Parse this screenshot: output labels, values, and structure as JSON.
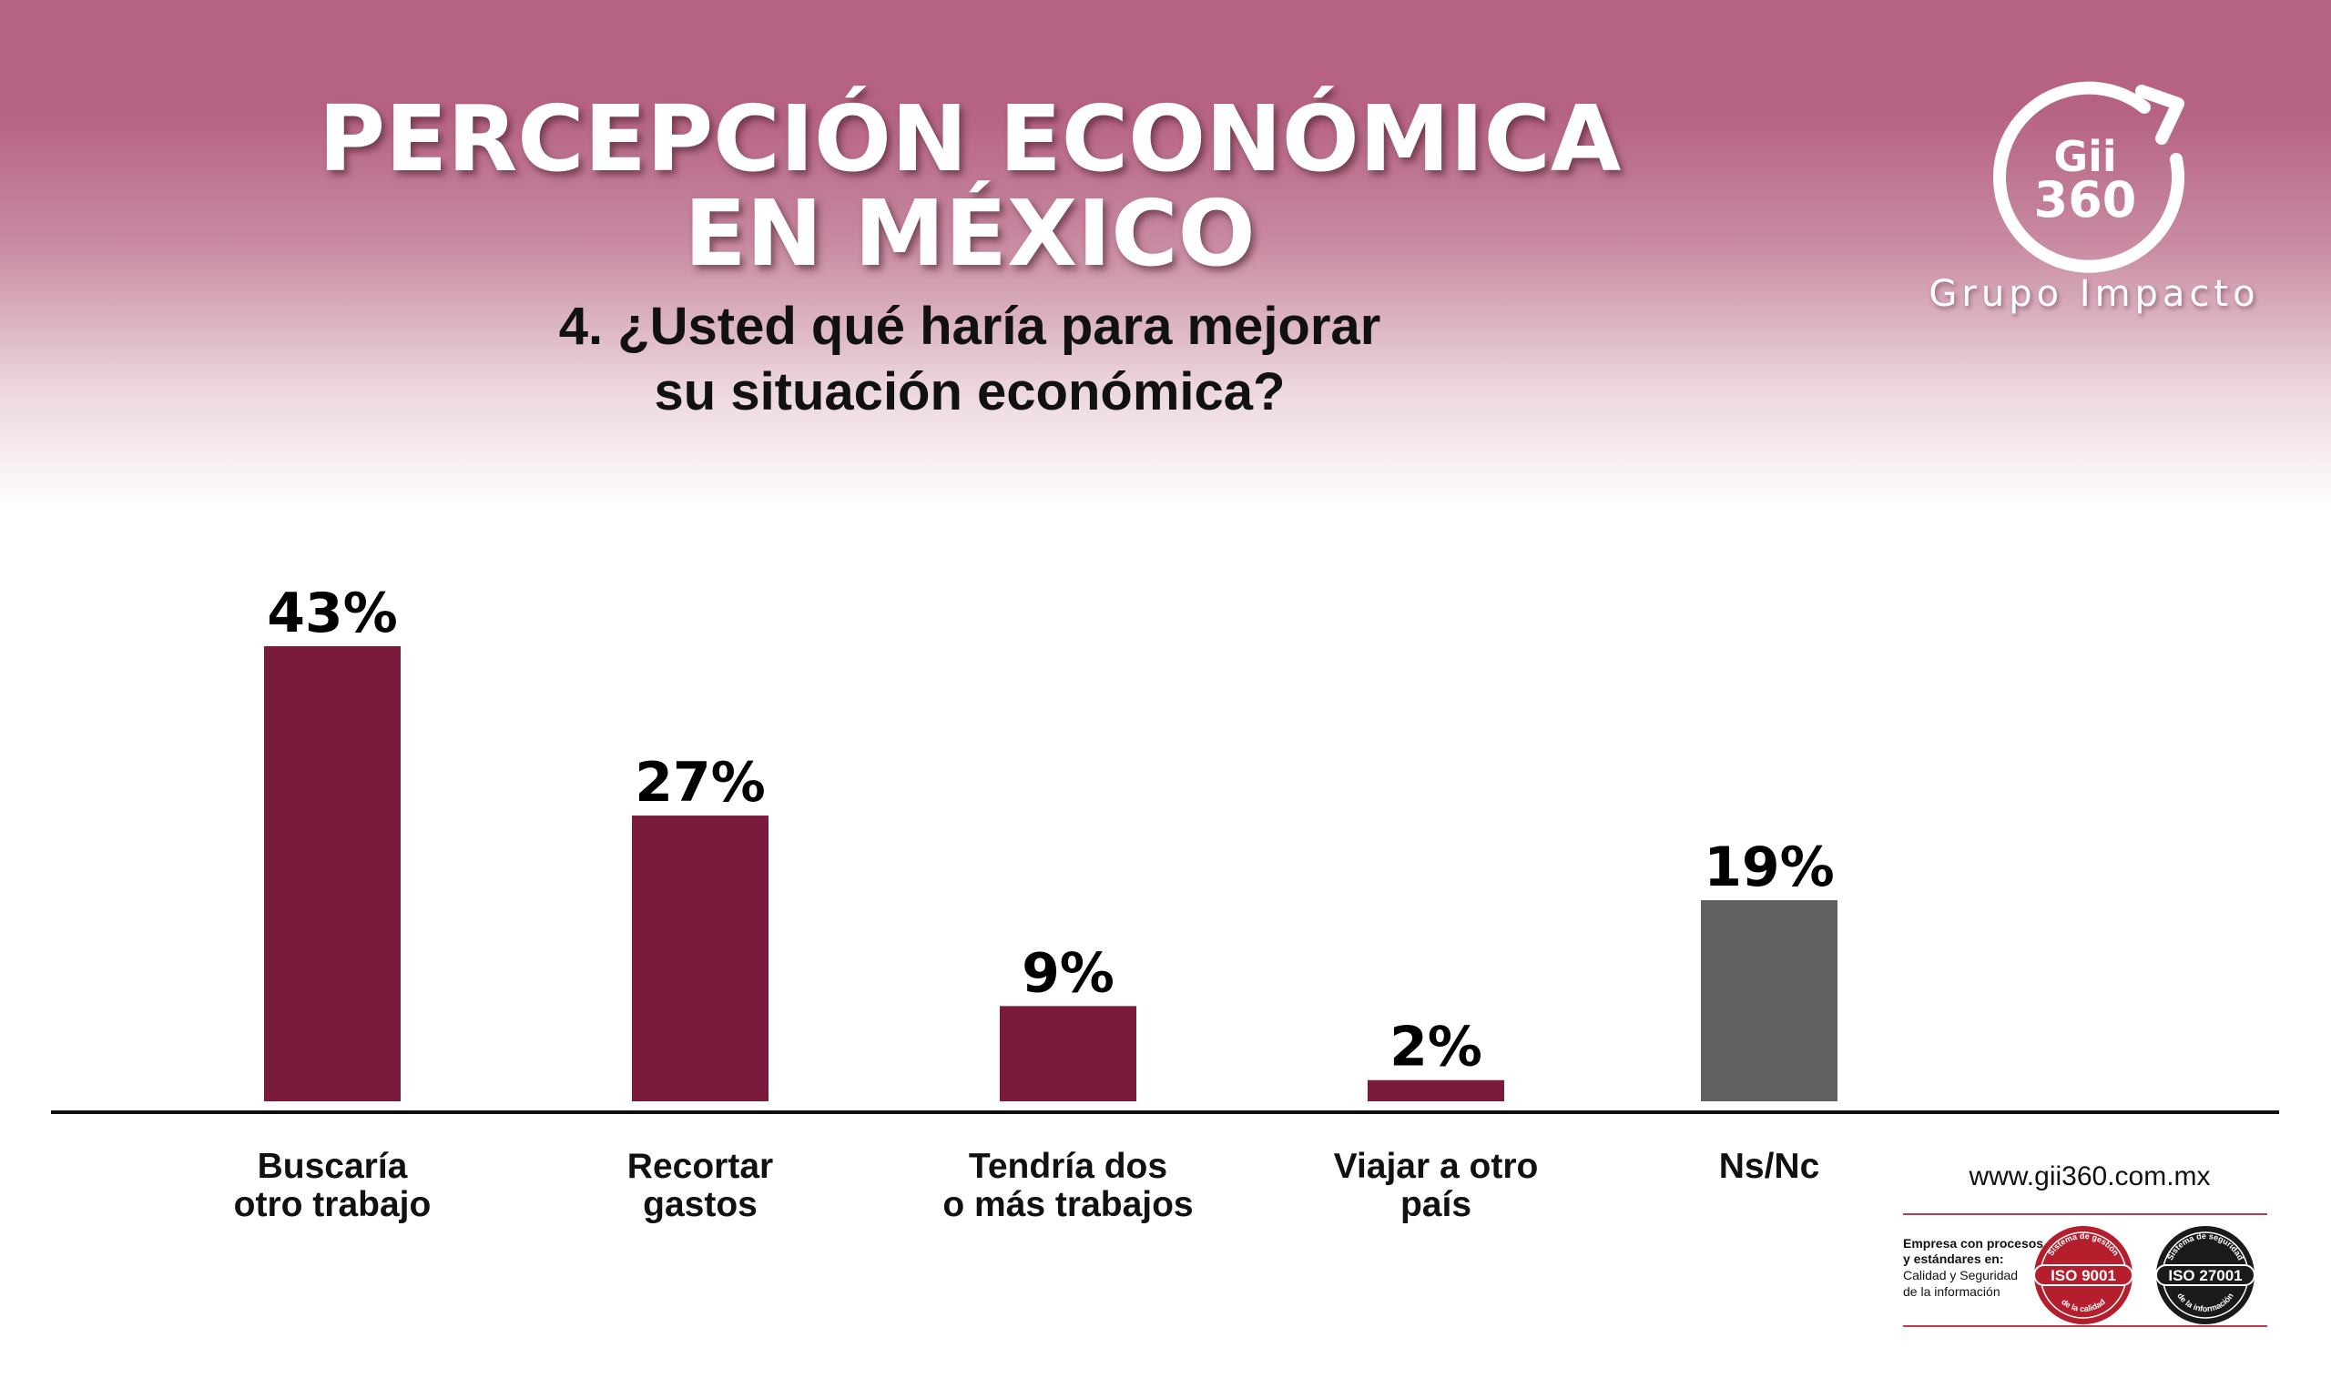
{
  "header": {
    "title_line1": "PERCEPCIÓN ECONÓMICA",
    "title_line2": "EN MÉXICO",
    "question_line1": "4. ¿Usted qué haría para mejorar",
    "question_line2": "su situación económica?"
  },
  "logo": {
    "mark_line1": "Gii",
    "mark_line2": "360",
    "company": "Grupo Impacto",
    "icon": "circular-arrow-icon"
  },
  "footer": {
    "website": "www.gii360.com.mx",
    "cert_text": [
      "Empresa con procesos",
      "y estándares en:",
      "Calidad y Seguridad",
      "de la información"
    ],
    "seals": [
      {
        "label": "ISO 9001",
        "arc_top": "Sistema de gestión",
        "arc_bottom": "de la calidad",
        "color": "#b51e2c"
      },
      {
        "label": "ISO 27001",
        "arc_top": "Sistema de seguridad",
        "arc_bottom": "de la información",
        "color": "#1a1a1a"
      }
    ]
  },
  "chart_data": {
    "type": "bar",
    "title": "",
    "xlabel": "",
    "ylabel": "",
    "ylim": [
      0,
      50
    ],
    "grid": false,
    "legend": "none",
    "categories": [
      [
        "Buscaría",
        "otro trabajo"
      ],
      [
        "Recortar",
        "gastos"
      ],
      [
        "Tendría dos",
        "o más trabajos"
      ],
      [
        "Viajar a otro",
        "país"
      ],
      [
        "Ns/Nc"
      ]
    ],
    "values": [
      43,
      27,
      9,
      2,
      19
    ],
    "value_labels": [
      "43%",
      "27%",
      "9%",
      "2%",
      "19%"
    ],
    "colors": [
      "#7a1a3c",
      "#7a1a3c",
      "#7a1a3c",
      "#7a1a3c",
      "#606060"
    ],
    "axis_color": "#111111"
  }
}
